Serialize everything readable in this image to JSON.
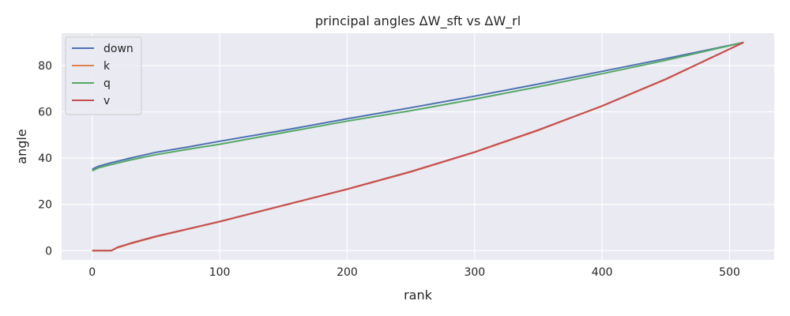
{
  "chart_data": {
    "type": "line",
    "title": "principal angles ΔW_sft vs ΔW_rl",
    "xlabel": "rank",
    "ylabel": "angle",
    "xlim": [
      -24,
      535
    ],
    "ylim": [
      -4,
      94
    ],
    "xticks": [
      0,
      100,
      200,
      300,
      400,
      500
    ],
    "yticks": [
      0,
      20,
      40,
      60,
      80
    ],
    "grid": true,
    "legend": "top-left",
    "background": "#eaeaf2",
    "series": [
      {
        "name": "down",
        "color": "#4c72b0",
        "x": [
          0,
          5,
          15,
          30,
          50,
          75,
          100,
          150,
          200,
          250,
          300,
          350,
          400,
          450,
          511
        ],
        "y": [
          35.2,
          36.5,
          38,
          40,
          42.5,
          44.8,
          47.3,
          52,
          57,
          61.8,
          66.8,
          72,
          77.5,
          83,
          90
        ]
      },
      {
        "name": "k",
        "color": "#dd8452",
        "x": [
          0,
          15,
          20,
          30,
          50,
          100,
          150,
          200,
          250,
          300,
          350,
          400,
          450,
          511
        ],
        "y": [
          0,
          0,
          1.3,
          3,
          6,
          12.5,
          19.5,
          26.5,
          34,
          42.5,
          52,
          62.5,
          74,
          90
        ]
      },
      {
        "name": "q",
        "color": "#55a868",
        "x": [
          0,
          5,
          15,
          30,
          50,
          75,
          100,
          150,
          200,
          250,
          300,
          350,
          400,
          450,
          511
        ],
        "y": [
          34.5,
          35.8,
          37.2,
          39.2,
          41.5,
          43.8,
          46,
          51,
          56,
          60.5,
          65.5,
          70.8,
          76.5,
          82.3,
          90
        ]
      },
      {
        "name": "v",
        "color": "#c44e52",
        "x": [
          0,
          15,
          20,
          30,
          50,
          100,
          150,
          200,
          250,
          300,
          350,
          400,
          450,
          511
        ],
        "y": [
          0,
          0,
          1.5,
          3.2,
          6.2,
          12.6,
          19.6,
          26.6,
          34.2,
          42.6,
          52.2,
          62.6,
          74.2,
          90
        ]
      }
    ]
  }
}
